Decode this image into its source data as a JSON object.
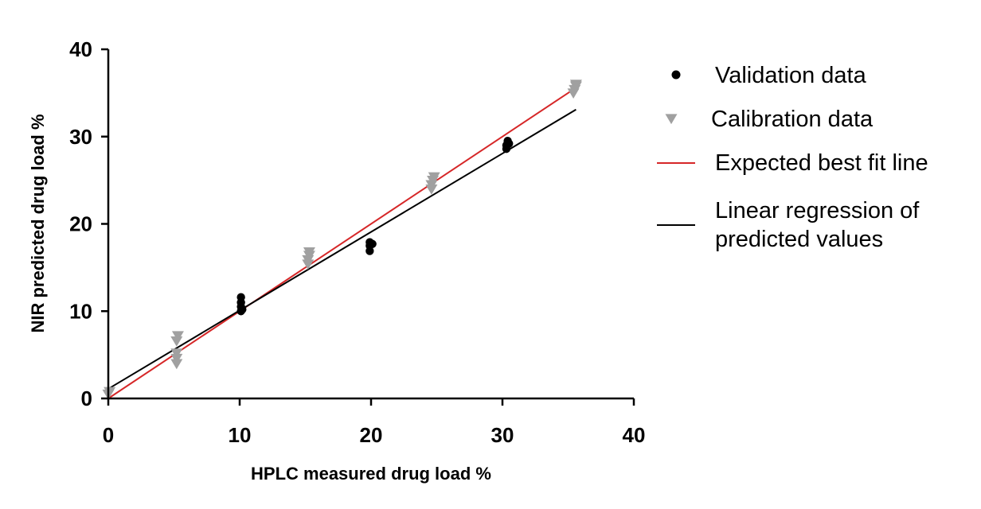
{
  "chart_data": {
    "type": "scatter",
    "xlabel": "HPLC measured drug load %",
    "ylabel": "NIR predicted drug load %",
    "xlim": [
      0,
      40
    ],
    "ylim": [
      0,
      40
    ],
    "x_ticks": [
      0,
      10,
      20,
      30,
      40
    ],
    "y_ticks": [
      0,
      10,
      20,
      30,
      40
    ],
    "grid": false,
    "legend_position": "right",
    "series": [
      {
        "name": "Validation data",
        "kind": "points",
        "marker": "circle",
        "color": "#000000",
        "points": [
          [
            10.1,
            10.0
          ],
          [
            10.1,
            10.5
          ],
          [
            10.1,
            11.0
          ],
          [
            10.1,
            11.6
          ],
          [
            10.2,
            10.2
          ],
          [
            19.9,
            16.9
          ],
          [
            19.9,
            17.5
          ],
          [
            19.9,
            17.9
          ],
          [
            20.1,
            17.7
          ],
          [
            30.3,
            28.6
          ],
          [
            30.3,
            29.0
          ],
          [
            30.4,
            29.5
          ],
          [
            30.5,
            29.2
          ]
        ]
      },
      {
        "name": "Calibration data",
        "kind": "points",
        "marker": "triangle-down",
        "color": "#a0a0a0",
        "points": [
          [
            0.0,
            0.5
          ],
          [
            0.1,
            0.8
          ],
          [
            5.2,
            4.0
          ],
          [
            5.2,
            4.6
          ],
          [
            5.2,
            5.2
          ],
          [
            5.2,
            6.6
          ],
          [
            5.3,
            7.2
          ],
          [
            15.2,
            15.4
          ],
          [
            15.2,
            15.9
          ],
          [
            15.3,
            16.4
          ],
          [
            15.3,
            16.8
          ],
          [
            24.6,
            24.0
          ],
          [
            24.6,
            24.5
          ],
          [
            24.7,
            25.0
          ],
          [
            24.8,
            25.4
          ],
          [
            35.4,
            35.0
          ],
          [
            35.5,
            35.4
          ],
          [
            35.6,
            35.8
          ],
          [
            35.6,
            36.0
          ]
        ]
      },
      {
        "name": "Expected best fit line",
        "kind": "line",
        "color": "#d62728",
        "x": [
          0,
          35.6
        ],
        "y": [
          0,
          35.6
        ]
      },
      {
        "name": "Linear regression of predicted values",
        "kind": "line",
        "color": "#000000",
        "x": [
          0,
          35.6
        ],
        "y": [
          1.1,
          33.1
        ]
      }
    ]
  }
}
